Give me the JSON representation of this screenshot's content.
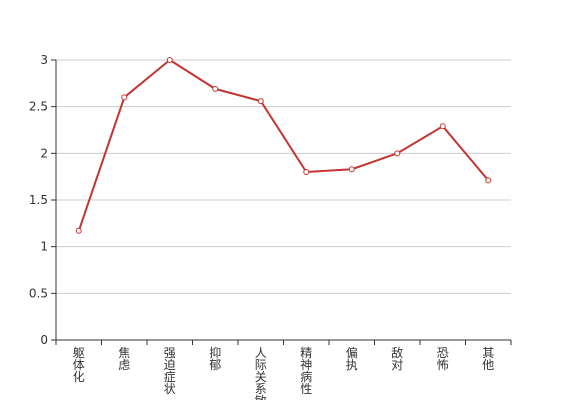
{
  "chart_data": {
    "type": "line",
    "categories": [
      "躯体化",
      "焦虑",
      "强迫症状",
      "抑郁",
      "人际关系敏感",
      "精神病性",
      "偏执",
      "敌对",
      "恐怖",
      "其他"
    ],
    "series": [
      {
        "values": [
          1.17,
          2.6,
          3.0,
          2.69,
          2.56,
          1.8,
          1.83,
          2.0,
          2.29,
          1.71
        ]
      }
    ],
    "yticks": [
      "0",
      "0.5",
      "1",
      "1.5",
      "2",
      "2.5",
      "3"
    ],
    "ylim": [
      0,
      3
    ],
    "grid": true,
    "line_color": "#c23531"
  }
}
